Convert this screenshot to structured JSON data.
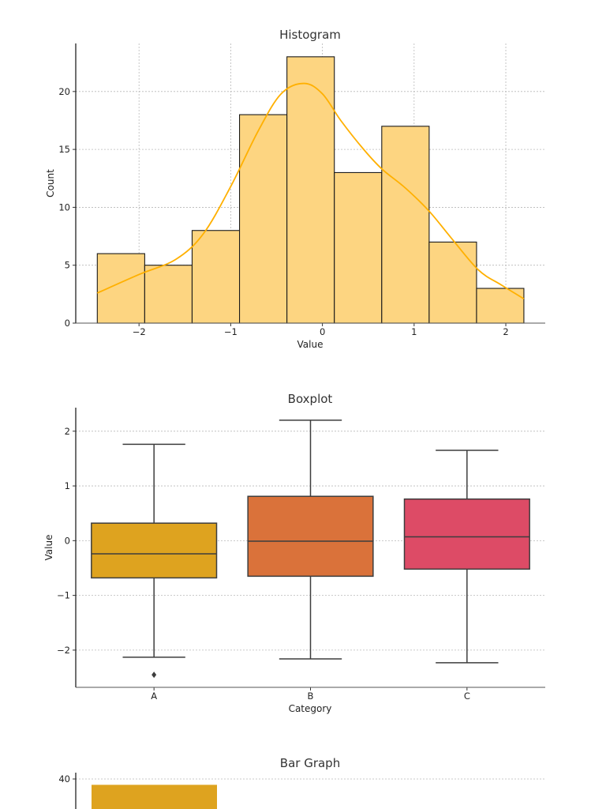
{
  "chart_data": [
    {
      "type": "histogram",
      "title": "Histogram",
      "xlabel": "Value",
      "ylabel": "Count",
      "bin_edges": [
        -2.455,
        -1.938,
        -1.421,
        -0.904,
        -0.387,
        0.13,
        0.647,
        1.164,
        1.681,
        2.197
      ],
      "counts": [
        6,
        5,
        8,
        18,
        23,
        13,
        17,
        7,
        3
      ],
      "kde": {
        "x": [
          -2.455,
          -2.0,
          -1.6,
          -1.3,
          -1.0,
          -0.7,
          -0.45,
          -0.2,
          0.0,
          0.2,
          0.45,
          0.65,
          0.9,
          1.16,
          1.4,
          1.7,
          1.95,
          2.197
        ],
        "y": [
          2.6,
          4.2,
          5.5,
          7.7,
          11.8,
          16.6,
          19.8,
          20.7,
          19.8,
          17.5,
          15.0,
          13.3,
          11.7,
          9.7,
          7.4,
          4.6,
          3.3,
          2.1
        ]
      },
      "xticks": [
        "−2",
        "−1",
        "0",
        "1",
        "2"
      ],
      "xtick_values": [
        -2,
        -1,
        0,
        1,
        2
      ],
      "yticks": [
        "0",
        "5",
        "10",
        "15",
        "20"
      ],
      "ytick_values": [
        0,
        5,
        10,
        15,
        20
      ],
      "xlim": [
        -2.69,
        2.43
      ],
      "ylim": [
        0,
        24.15
      ],
      "grid": true,
      "colors": {
        "bar": "#FDD581",
        "edge": "#1a1a1a",
        "kde": "#FFB000"
      }
    },
    {
      "type": "boxplot",
      "title": "Boxplot",
      "xlabel": "Category",
      "ylabel": "Value",
      "categories": [
        "A",
        "B",
        "C"
      ],
      "boxes": [
        {
          "whisker_low": -2.13,
          "q1": -0.68,
          "median": -0.24,
          "q3": 0.32,
          "whisker_high": 1.76,
          "outliers": [
            -2.45
          ],
          "color": "#DEA31F"
        },
        {
          "whisker_low": -2.16,
          "q1": -0.65,
          "median": -0.01,
          "q3": 0.81,
          "whisker_high": 2.2,
          "outliers": [],
          "color": "#DA723A"
        },
        {
          "whisker_low": -2.23,
          "q1": -0.52,
          "median": 0.07,
          "q3": 0.76,
          "whisker_high": 1.65,
          "outliers": [],
          "color": "#DD4B66"
        }
      ],
      "yticks": [
        "−2",
        "−1",
        "0",
        "1",
        "2"
      ],
      "ytick_values": [
        -2,
        -1,
        0,
        1,
        2
      ],
      "ylim": [
        -2.68,
        2.43
      ],
      "grid": true
    },
    {
      "type": "bar",
      "title": "Bar Graph",
      "values": [
        38
      ],
      "yticks": [
        "40"
      ],
      "ytick_values": [
        40
      ],
      "ylim": [
        0,
        42
      ],
      "grid": true,
      "colors": {
        "bar": "#DEA31F"
      }
    }
  ]
}
